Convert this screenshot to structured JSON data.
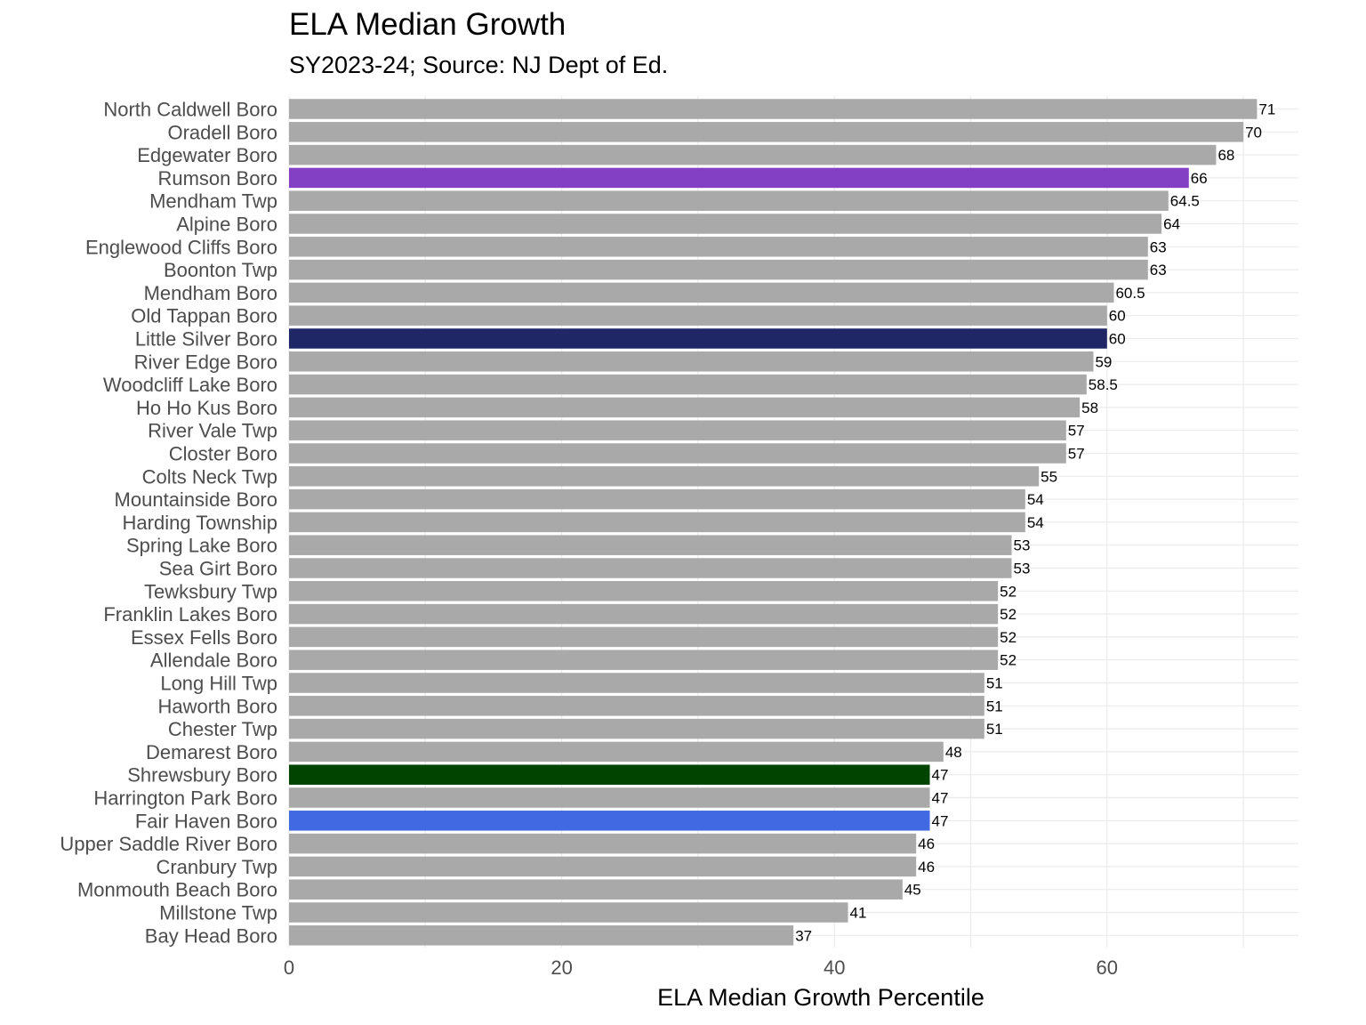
{
  "chart_data": {
    "type": "bar",
    "orientation": "horizontal",
    "title": "ELA Median Growth",
    "subtitle": "SY2023-24; Source: NJ Dept of Ed.",
    "xlabel": "ELA Median Growth Percentile",
    "ylabel": "",
    "xlim": [
      0,
      71
    ],
    "x_ticks": [
      0,
      20,
      40,
      60
    ],
    "grid": true,
    "default_color": "#a9a9a9",
    "categories": [
      "North Caldwell Boro",
      "Oradell Boro",
      "Edgewater Boro",
      "Rumson Boro",
      "Mendham Twp",
      "Alpine Boro",
      "Englewood Cliffs Boro",
      "Boonton Twp",
      "Mendham Boro",
      "Old Tappan Boro",
      "Little Silver Boro",
      "River Edge Boro",
      "Woodcliff Lake Boro",
      "Ho Ho Kus Boro",
      "River Vale Twp",
      "Closter Boro",
      "Colts Neck Twp",
      "Mountainside Boro",
      "Harding Township",
      "Spring Lake Boro",
      "Sea Girt Boro",
      "Tewksbury Twp",
      "Franklin Lakes Boro",
      "Essex Fells Boro",
      "Allendale Boro",
      "Long Hill Twp",
      "Haworth Boro",
      "Chester Twp",
      "Demarest Boro",
      "Shrewsbury Boro",
      "Harrington Park Boro",
      "Fair Haven Boro",
      "Upper Saddle River Boro",
      "Cranbury Twp",
      "Monmouth Beach Boro",
      "Millstone Twp",
      "Bay Head Boro"
    ],
    "values": [
      71,
      70,
      68,
      66,
      64.5,
      64,
      63,
      63,
      60.5,
      60,
      60,
      59,
      58.5,
      58,
      57,
      57,
      55,
      54,
      54,
      53,
      53,
      52,
      52,
      52,
      52,
      51,
      51,
      51,
      48,
      47,
      47,
      47,
      46,
      46,
      45,
      41,
      37
    ],
    "value_labels": [
      "71",
      "70",
      "68",
      "66",
      "64.5",
      "64",
      "63",
      "63",
      "60.5",
      "60",
      "60",
      "59",
      "58.5",
      "58",
      "57",
      "57",
      "55",
      "54",
      "54",
      "53",
      "53",
      "52",
      "52",
      "52",
      "52",
      "51",
      "51",
      "51",
      "48",
      "47",
      "47",
      "47",
      "46",
      "46",
      "45",
      "41",
      "37"
    ],
    "highlights": {
      "Rumson Boro": "#8340c4",
      "Little Silver Boro": "#1f2766",
      "Shrewsbury Boro": "#004400",
      "Fair Haven Boro": "#4169e1"
    }
  }
}
